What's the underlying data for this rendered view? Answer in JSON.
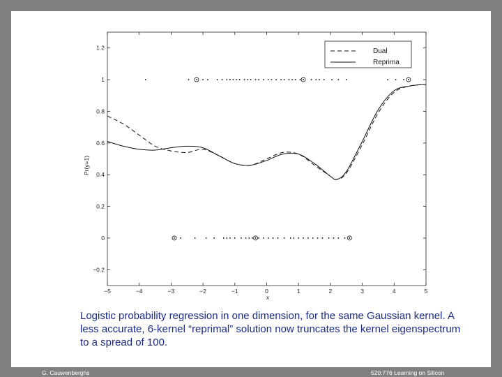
{
  "chart_data": {
    "type": "line",
    "xlabel": "x",
    "ylabel": "Pr(y=1)",
    "xlim": [
      -5,
      5
    ],
    "ylim": [
      -0.3,
      1.3
    ],
    "xticks": [
      -5,
      -4,
      -3,
      -2,
      -1,
      0,
      1,
      2,
      3,
      4,
      5
    ],
    "xtick_labels": [
      "−5",
      "−4",
      "−3",
      "−2",
      "−1",
      "0",
      "1",
      "2",
      "3",
      "4",
      "5"
    ],
    "yticks": [
      -0.2,
      0,
      0.2,
      0.4,
      0.6,
      0.8,
      1,
      1.2
    ],
    "ytick_labels": [
      "−0.2",
      "0",
      "0.2",
      "0.4",
      "0.6",
      "0.8",
      "1",
      "1.2"
    ],
    "legend_position": "top-right",
    "series": [
      {
        "name": "Dual",
        "style": "dashed",
        "x": [
          -5,
          -4.5,
          -4,
          -3.5,
          -3,
          -2.5,
          -2,
          -1.5,
          -1,
          -0.5,
          0,
          0.5,
          1,
          1.5,
          2,
          2.2,
          2.5,
          3,
          3.5,
          4,
          4.5,
          5
        ],
        "y": [
          0.77,
          0.72,
          0.65,
          0.58,
          0.55,
          0.54,
          0.56,
          0.52,
          0.47,
          0.46,
          0.5,
          0.54,
          0.53,
          0.46,
          0.39,
          0.37,
          0.41,
          0.59,
          0.79,
          0.92,
          0.96,
          0.97
        ]
      },
      {
        "name": "Reprima",
        "style": "solid",
        "x": [
          -5,
          -4.5,
          -4,
          -3.5,
          -3,
          -2.5,
          -2,
          -1.5,
          -1,
          -0.5,
          0,
          0.5,
          1,
          1.5,
          2,
          2.2,
          2.5,
          3,
          3.5,
          4,
          4.5,
          5
        ],
        "y": [
          0.61,
          0.58,
          0.56,
          0.555,
          0.57,
          0.58,
          0.57,
          0.52,
          0.47,
          0.46,
          0.49,
          0.53,
          0.53,
          0.47,
          0.39,
          0.37,
          0.42,
          0.61,
          0.81,
          0.93,
          0.96,
          0.97
        ]
      }
    ],
    "points_y1": {
      "x": [
        -3.8,
        -2.45,
        -2.2,
        -2.0,
        -1.85,
        -1.55,
        -1.4,
        -1.25,
        -1.15,
        -1.05,
        -0.95,
        -0.85,
        -0.7,
        -0.6,
        -0.5,
        -0.35,
        -0.25,
        -0.1,
        0.05,
        0.15,
        0.3,
        0.45,
        0.55,
        0.7,
        0.8,
        0.9,
        1.05,
        1.15,
        1.4,
        1.55,
        1.65,
        1.8,
        2.05,
        2.25,
        2.5,
        3.8,
        4.05,
        4.3,
        4.45
      ],
      "circled": [
        -2.2,
        1.15,
        4.45
      ]
    },
    "points_y0": {
      "x": [
        -2.9,
        -2.7,
        -2.25,
        -1.9,
        -1.65,
        -1.35,
        -1.25,
        -1.15,
        -1.0,
        -0.8,
        -0.65,
        -0.55,
        -0.45,
        -0.35,
        -0.25,
        -0.1,
        0.05,
        0.2,
        0.35,
        0.55,
        0.75,
        0.85,
        1.0,
        1.15,
        1.3,
        1.45,
        1.6,
        1.75,
        1.95,
        2.1,
        2.25,
        2.45,
        2.6
      ],
      "circled": [
        -2.9,
        -0.35,
        2.6
      ]
    }
  },
  "caption": "Logistic probability regression in one dimension, for the same Gaussian kernel.  A less accurate, 6-kernel “reprimal” solution now truncates the kernel eigenspectrum to a spread of 100.",
  "footer": {
    "left": "G. Cauwenberghs",
    "right": "520.776 Learning on Silicon"
  },
  "colors": {
    "frame": "#808080",
    "caption": "#1a2a8a",
    "lines": "#111111"
  }
}
